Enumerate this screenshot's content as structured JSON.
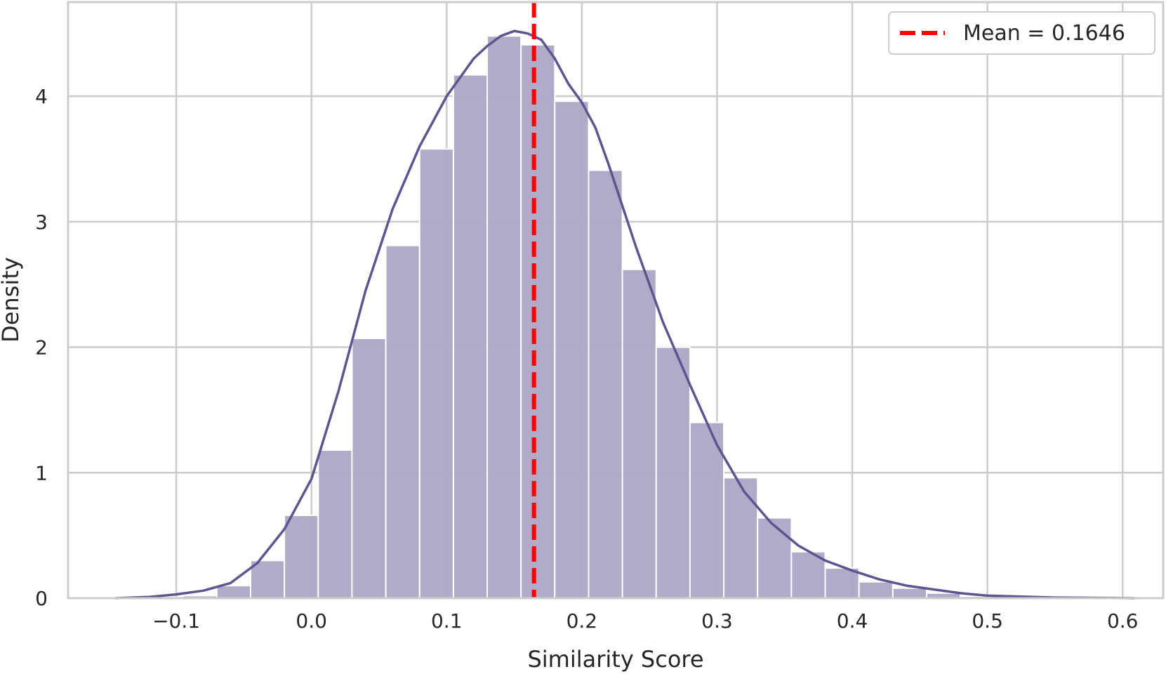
{
  "chart_data": {
    "type": "bar",
    "title": "",
    "xlabel": "Similarity Score",
    "ylabel": "Density",
    "xlim": [
      -0.18,
      0.63
    ],
    "ylim": [
      0,
      4.75
    ],
    "x_ticks": [
      -0.1,
      0.0,
      0.1,
      0.2,
      0.3,
      0.4,
      0.5,
      0.6
    ],
    "x_tick_labels": [
      "−0.1",
      "0.0",
      "0.1",
      "0.2",
      "0.3",
      "0.4",
      "0.5",
      "0.6"
    ],
    "y_ticks": [
      0,
      1,
      2,
      3,
      4
    ],
    "y_tick_labels": [
      "0",
      "1",
      "2",
      "3",
      "4"
    ],
    "grid": true,
    "bins": [
      {
        "x0": -0.145,
        "x1": -0.12,
        "density": 0.003
      },
      {
        "x0": -0.12,
        "x1": -0.095,
        "density": 0.005
      },
      {
        "x0": -0.095,
        "x1": -0.07,
        "density": 0.02
      },
      {
        "x0": -0.07,
        "x1": -0.045,
        "density": 0.1
      },
      {
        "x0": -0.045,
        "x1": -0.02,
        "density": 0.3
      },
      {
        "x0": -0.02,
        "x1": 0.005,
        "density": 0.66
      },
      {
        "x0": 0.005,
        "x1": 0.03,
        "density": 1.18
      },
      {
        "x0": 0.03,
        "x1": 0.055,
        "density": 2.07
      },
      {
        "x0": 0.055,
        "x1": 0.08,
        "density": 2.81
      },
      {
        "x0": 0.08,
        "x1": 0.105,
        "density": 3.58
      },
      {
        "x0": 0.105,
        "x1": 0.13,
        "density": 4.17
      },
      {
        "x0": 0.13,
        "x1": 0.155,
        "density": 4.48
      },
      {
        "x0": 0.155,
        "x1": 0.18,
        "density": 4.41
      },
      {
        "x0": 0.18,
        "x1": 0.205,
        "density": 3.96
      },
      {
        "x0": 0.205,
        "x1": 0.23,
        "density": 3.41
      },
      {
        "x0": 0.23,
        "x1": 0.255,
        "density": 2.62
      },
      {
        "x0": 0.255,
        "x1": 0.28,
        "density": 2.0
      },
      {
        "x0": 0.28,
        "x1": 0.305,
        "density": 1.4
      },
      {
        "x0": 0.305,
        "x1": 0.33,
        "density": 0.96
      },
      {
        "x0": 0.33,
        "x1": 0.355,
        "density": 0.64
      },
      {
        "x0": 0.355,
        "x1": 0.38,
        "density": 0.37
      },
      {
        "x0": 0.38,
        "x1": 0.405,
        "density": 0.24
      },
      {
        "x0": 0.405,
        "x1": 0.43,
        "density": 0.13
      },
      {
        "x0": 0.43,
        "x1": 0.455,
        "density": 0.08
      },
      {
        "x0": 0.455,
        "x1": 0.48,
        "density": 0.04
      },
      {
        "x0": 0.48,
        "x1": 0.505,
        "density": 0.015
      },
      {
        "x0": 0.505,
        "x1": 0.53,
        "density": 0.008
      },
      {
        "x0": 0.53,
        "x1": 0.555,
        "density": 0.004
      },
      {
        "x0": 0.555,
        "x1": 0.58,
        "density": 0.002
      },
      {
        "x0": 0.58,
        "x1": 0.609,
        "density": 0.001
      }
    ],
    "kde": {
      "x": [
        -0.145,
        -0.12,
        -0.1,
        -0.08,
        -0.06,
        -0.04,
        -0.02,
        0.0,
        0.02,
        0.04,
        0.06,
        0.08,
        0.1,
        0.12,
        0.13,
        0.14,
        0.15,
        0.16,
        0.17,
        0.18,
        0.19,
        0.2,
        0.21,
        0.22,
        0.24,
        0.26,
        0.28,
        0.3,
        0.32,
        0.34,
        0.36,
        0.38,
        0.4,
        0.42,
        0.44,
        0.46,
        0.48,
        0.5,
        0.55,
        0.609
      ],
      "y": [
        0.0,
        0.01,
        0.03,
        0.06,
        0.12,
        0.28,
        0.55,
        0.95,
        1.65,
        2.45,
        3.1,
        3.6,
        4.0,
        4.3,
        4.4,
        4.48,
        4.52,
        4.5,
        4.45,
        4.3,
        4.1,
        3.95,
        3.75,
        3.45,
        2.8,
        2.2,
        1.7,
        1.22,
        0.85,
        0.6,
        0.42,
        0.3,
        0.22,
        0.15,
        0.1,
        0.07,
        0.04,
        0.02,
        0.005,
        0.0
      ]
    },
    "mean_line": {
      "value": 0.1646,
      "label": "Mean = 0.1646",
      "color": "#ff0000",
      "style": "dashed"
    },
    "legend_placement": "top-right",
    "colors": {
      "bars": "#aba7c6",
      "bar_edge": "#ffffff",
      "kde": "#5b5590",
      "grid": "#cccccc",
      "spine": "#cccccc",
      "mean": "#ff0000"
    }
  }
}
